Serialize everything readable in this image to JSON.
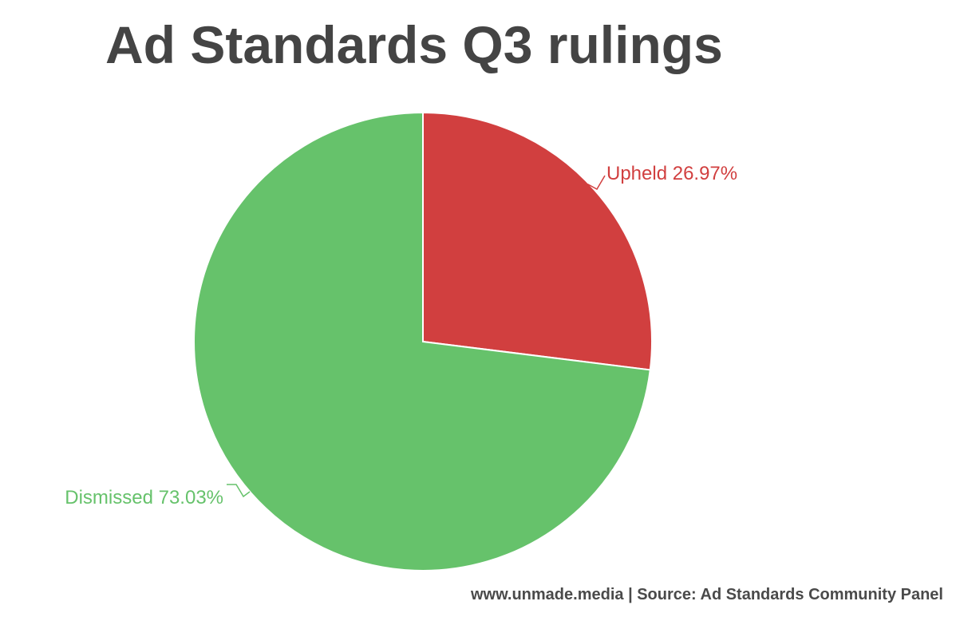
{
  "title": "Ad Standards Q3 rulings",
  "footer": "www.unmade.media | Source: Ad Standards Community Panel",
  "chart_data": {
    "type": "pie",
    "title": "Ad Standards Q3 rulings",
    "slices": [
      {
        "label": "Upheld",
        "value": 26.97,
        "display": "Upheld 26.97%",
        "color": "#d13f3f"
      },
      {
        "label": "Dismissed",
        "value": 73.03,
        "display": "Dismissed 73.03%",
        "color": "#66c26b"
      }
    ],
    "start_angle": "12 o'clock",
    "direction": "clockwise",
    "legend": "none",
    "labels": "outside with leader lines"
  }
}
